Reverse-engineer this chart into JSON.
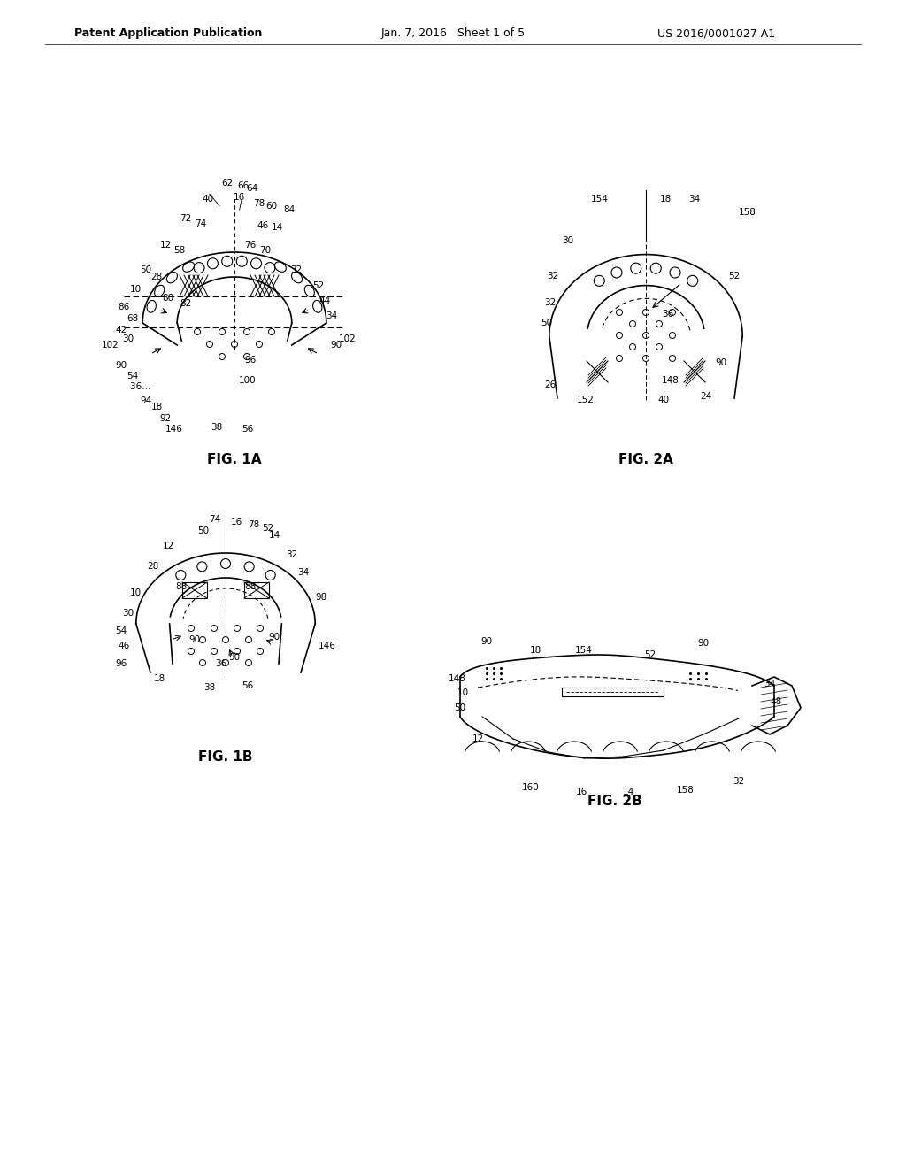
{
  "bg_color": "#ffffff",
  "header_left": "Patent Application Publication",
  "header_mid": "Jan. 7, 2016   Sheet 1 of 5",
  "header_right": "US 2016/0001027 A1",
  "fig1a_label": "FIG. 1A",
  "fig1b_label": "FIG. 1B",
  "fig2a_label": "FIG. 2A",
  "fig2b_label": "FIG. 2B"
}
